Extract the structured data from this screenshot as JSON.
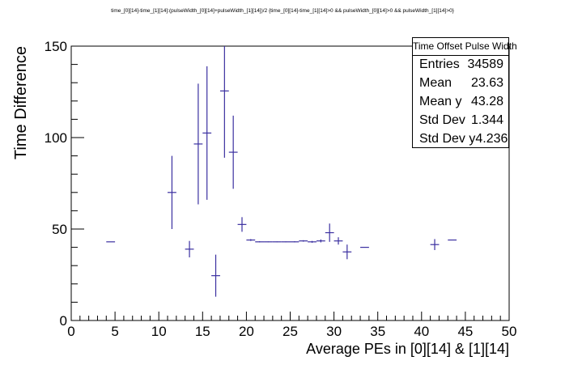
{
  "title": "time_[0][14]-time_[1][14]:(pulseWidth_[0][14]+pulseWidth_[1][14])/2  {time_[0][14]-time_[1][14]>0 && pulseWidth_[0][14]>0 && pulseWidth_[1][14]>0}",
  "stats_box": {
    "title": "Time Offset Pulse Width",
    "rows": [
      {
        "label": "Entries",
        "value": "34589"
      },
      {
        "label": "Mean",
        "value": "23.63"
      },
      {
        "label": "Mean y",
        "value": "43.28"
      },
      {
        "label": "Std Dev",
        "value": "1.344"
      },
      {
        "label": "Std Dev y",
        "value": "4.236"
      }
    ]
  },
  "colors": {
    "marker": "#3a2fa0",
    "axis": "#000000",
    "background": "#ffffff"
  },
  "chart_data": {
    "type": "scatter",
    "style": "profile-errorbars",
    "xlabel": "Average PEs in [0][14] & [1][14]",
    "ylabel": "Time Difference",
    "xlim": [
      0,
      50
    ],
    "ylim": [
      0,
      150
    ],
    "xticks": [
      0,
      5,
      10,
      15,
      20,
      25,
      30,
      35,
      40,
      45,
      50
    ],
    "yticks": [
      0,
      50,
      100,
      150
    ],
    "grid": false,
    "legend": "top-right stats box",
    "bin_width": 1,
    "points": [
      {
        "x": 4.5,
        "y": 43.0,
        "err": 0.0
      },
      {
        "x": 11.5,
        "y": 70.0,
        "err": 20.0
      },
      {
        "x": 13.5,
        "y": 39.0,
        "err": 4.5
      },
      {
        "x": 14.5,
        "y": 96.5,
        "err": 33.0
      },
      {
        "x": 15.5,
        "y": 102.5,
        "err": 36.5
      },
      {
        "x": 16.5,
        "y": 24.5,
        "err": 11.5
      },
      {
        "x": 17.5,
        "y": 125.5,
        "err": 36.5
      },
      {
        "x": 18.5,
        "y": 92.0,
        "err": 20.0
      },
      {
        "x": 19.5,
        "y": 52.5,
        "err": 4.0
      },
      {
        "x": 20.5,
        "y": 44.0,
        "err": 0.5
      },
      {
        "x": 21.5,
        "y": 43.0,
        "err": 0.3
      },
      {
        "x": 22.5,
        "y": 43.0,
        "err": 0.2
      },
      {
        "x": 23.5,
        "y": 43.0,
        "err": 0.2
      },
      {
        "x": 24.5,
        "y": 43.0,
        "err": 0.2
      },
      {
        "x": 25.5,
        "y": 43.0,
        "err": 0.3
      },
      {
        "x": 26.5,
        "y": 43.5,
        "err": 0.4
      },
      {
        "x": 27.5,
        "y": 43.0,
        "err": 0.5
      },
      {
        "x": 28.5,
        "y": 43.5,
        "err": 0.8
      },
      {
        "x": 29.5,
        "y": 48.0,
        "err": 5.0
      },
      {
        "x": 30.5,
        "y": 43.5,
        "err": 2.0
      },
      {
        "x": 31.5,
        "y": 37.5,
        "err": 4.0
      },
      {
        "x": 33.5,
        "y": 40.0,
        "err": 0.0
      },
      {
        "x": 41.5,
        "y": 41.5,
        "err": 3.0
      },
      {
        "x": 43.5,
        "y": 44.0,
        "err": 0.0
      }
    ]
  }
}
